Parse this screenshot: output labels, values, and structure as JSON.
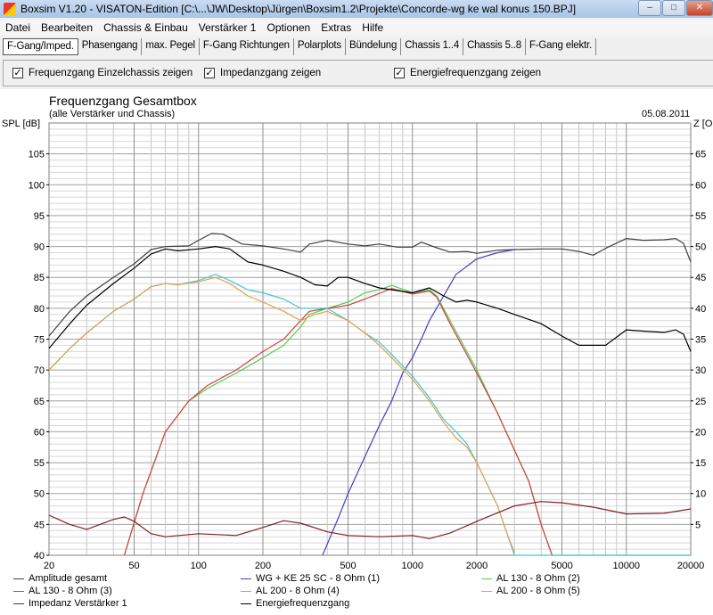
{
  "window": {
    "title": "Boxsim V1.20 - VISATON-Edition [C:\\...\\JW\\Desktop\\Jürgen\\Boxsim1.2\\Projekte\\Concorde-wg ke wal konus 150.BPJ]",
    "min": "–",
    "max": "□",
    "close": "✕"
  },
  "menu": [
    "Datei",
    "Bearbeiten",
    "Chassis & Einbau",
    "Verstärker 1",
    "Optionen",
    "Extras",
    "Hilfe"
  ],
  "tabs": [
    "F-Gang/Imped.",
    "Phasengang",
    "max. Pegel",
    "F-Gang Richtungen",
    "Polarplots",
    "Bündelung",
    "Chassis 1..4",
    "Chassis 5..8",
    "F-Gang elektr."
  ],
  "active_tab": 0,
  "options": [
    {
      "label": "Frequenzgang Einzelchassis zeigen",
      "checked": true
    },
    {
      "label": "Impedanzgang zeigen",
      "checked": true
    },
    {
      "label": "Energiefrequenzgang zeigen",
      "checked": true
    }
  ],
  "chart_data": {
    "type": "line",
    "title": "Frequenzgang Gesamtbox",
    "subtitle": "(alle Verstärker und Chassis)",
    "date": "05.08.2011",
    "ylabel": "SPL [dB]",
    "y2label": "Z [Ohm]",
    "xscale": "log",
    "xlim": [
      20,
      20000
    ],
    "ylim": [
      40,
      110
    ],
    "y2lim": [
      0,
      70
    ],
    "grid": true,
    "legend_position": "bottom",
    "xticks": [
      20,
      50,
      100,
      200,
      500,
      1000,
      2000,
      5000,
      10000,
      20000
    ],
    "yticks": [
      40,
      45,
      50,
      55,
      60,
      65,
      70,
      75,
      80,
      85,
      90,
      95,
      100,
      105
    ],
    "y2ticks": [
      5,
      10,
      15,
      20,
      25,
      30,
      35,
      40,
      45,
      50,
      55,
      60,
      65
    ],
    "series": [
      {
        "name": "Amplitude gesamt",
        "color": "#404040",
        "axis": "left",
        "points": [
          [
            20,
            75.5
          ],
          [
            25,
            79.5
          ],
          [
            30,
            82
          ],
          [
            40,
            85
          ],
          [
            50,
            87.2
          ],
          [
            60,
            89.5
          ],
          [
            70,
            90
          ],
          [
            90,
            90.1
          ],
          [
            100,
            91
          ],
          [
            115,
            92.1
          ],
          [
            130,
            92
          ],
          [
            160,
            90.4
          ],
          [
            200,
            90.1
          ],
          [
            250,
            89.6
          ],
          [
            300,
            89.1
          ],
          [
            330,
            90.4
          ],
          [
            400,
            91
          ],
          [
            500,
            90.4
          ],
          [
            600,
            90.1
          ],
          [
            700,
            90.4
          ],
          [
            850,
            89.9
          ],
          [
            1000,
            89.9
          ],
          [
            1100,
            90.7
          ],
          [
            1300,
            89.8
          ],
          [
            1500,
            89.1
          ],
          [
            1800,
            89.2
          ],
          [
            2000,
            88.9
          ],
          [
            2500,
            89.4
          ],
          [
            3000,
            89.5
          ],
          [
            4000,
            89.6
          ],
          [
            5000,
            89.6
          ],
          [
            6000,
            89.2
          ],
          [
            7000,
            88.6
          ],
          [
            8000,
            89.7
          ],
          [
            10000,
            91.3
          ],
          [
            12000,
            91
          ],
          [
            15000,
            91.1
          ],
          [
            17000,
            91.3
          ],
          [
            18500,
            90.5
          ],
          [
            20000,
            87.5
          ]
        ]
      },
      {
        "name": "WG + KE 25 SC - 8 Ohm (1)",
        "color": "#4040c0",
        "axis": "left",
        "points": [
          [
            380,
            40
          ],
          [
            450,
            46
          ],
          [
            500,
            50
          ],
          [
            600,
            56
          ],
          [
            700,
            61
          ],
          [
            800,
            65
          ],
          [
            900,
            69.5
          ],
          [
            1000,
            72
          ],
          [
            1100,
            75
          ],
          [
            1200,
            78
          ],
          [
            1400,
            82
          ],
          [
            1600,
            85.5
          ],
          [
            2000,
            88
          ],
          [
            2500,
            89
          ],
          [
            3000,
            89.5
          ]
        ]
      },
      {
        "name": "AL 130 - 8 Ohm (2)",
        "color": "#50d050",
        "axis": "left",
        "points": [
          [
            45,
            40
          ],
          [
            55,
            50
          ],
          [
            70,
            60
          ],
          [
            90,
            65
          ],
          [
            110,
            67
          ],
          [
            150,
            69.5
          ],
          [
            200,
            72
          ],
          [
            250,
            74
          ],
          [
            300,
            77
          ],
          [
            330,
            79
          ],
          [
            400,
            80
          ],
          [
            500,
            81
          ],
          [
            600,
            82.5
          ],
          [
            700,
            83
          ],
          [
            800,
            83.7
          ],
          [
            1000,
            82.5
          ],
          [
            1200,
            83
          ],
          [
            1300,
            82
          ],
          [
            1500,
            78
          ],
          [
            2000,
            70
          ],
          [
            2500,
            63
          ],
          [
            3000,
            57
          ],
          [
            3500,
            52
          ],
          [
            4000,
            45
          ],
          [
            4500,
            40
          ],
          [
            20000,
            40
          ]
        ]
      },
      {
        "name": "AL 130 - 8 Ohm (3)",
        "color": "#d04040",
        "axis": "left",
        "points": [
          [
            45,
            40
          ],
          [
            55,
            50
          ],
          [
            70,
            60
          ],
          [
            90,
            65
          ],
          [
            110,
            67.5
          ],
          [
            150,
            70
          ],
          [
            200,
            73
          ],
          [
            250,
            75
          ],
          [
            300,
            78
          ],
          [
            330,
            79.5
          ],
          [
            400,
            80
          ],
          [
            500,
            80.5
          ],
          [
            600,
            81.5
          ],
          [
            800,
            83.2
          ],
          [
            1000,
            82.3
          ],
          [
            1200,
            82.8
          ],
          [
            1300,
            81.8
          ],
          [
            1500,
            77.5
          ],
          [
            2000,
            69.5
          ],
          [
            2500,
            63
          ],
          [
            3000,
            57
          ],
          [
            3500,
            52
          ],
          [
            4000,
            45
          ],
          [
            4500,
            40
          ]
        ]
      },
      {
        "name": "AL 200 - 8 Ohm (4)",
        "color": "#40c8d8",
        "axis": "left",
        "points": [
          [
            20,
            70
          ],
          [
            25,
            73.5
          ],
          [
            30,
            76
          ],
          [
            40,
            79.5
          ],
          [
            50,
            81.5
          ],
          [
            60,
            83.5
          ],
          [
            70,
            84
          ],
          [
            80,
            83.8
          ],
          [
            100,
            84.5
          ],
          [
            120,
            85.5
          ],
          [
            140,
            84.5
          ],
          [
            170,
            83
          ],
          [
            200,
            82.5
          ],
          [
            250,
            81.5
          ],
          [
            300,
            80
          ],
          [
            350,
            80
          ],
          [
            400,
            80
          ],
          [
            500,
            78
          ],
          [
            600,
            76
          ],
          [
            700,
            74.5
          ],
          [
            800,
            72.5
          ],
          [
            1000,
            69
          ],
          [
            1200,
            65.5
          ],
          [
            1400,
            62
          ],
          [
            1600,
            60
          ],
          [
            1800,
            58
          ],
          [
            2000,
            55
          ],
          [
            2500,
            48
          ],
          [
            2800,
            43
          ],
          [
            3000,
            40
          ],
          [
            20000,
            40
          ]
        ]
      },
      {
        "name": "AL 200 - 8 Ohm (5)",
        "color": "#e0a050",
        "axis": "left",
        "points": [
          [
            20,
            70
          ],
          [
            25,
            73.5
          ],
          [
            30,
            76
          ],
          [
            40,
            79.5
          ],
          [
            50,
            81.5
          ],
          [
            60,
            83.5
          ],
          [
            70,
            84
          ],
          [
            80,
            83.8
          ],
          [
            100,
            84.3
          ],
          [
            120,
            85
          ],
          [
            140,
            84
          ],
          [
            170,
            82
          ],
          [
            200,
            81
          ],
          [
            250,
            79.5
          ],
          [
            300,
            78
          ],
          [
            350,
            79
          ],
          [
            400,
            79.5
          ],
          [
            500,
            78
          ],
          [
            600,
            76
          ],
          [
            700,
            74
          ],
          [
            800,
            72
          ],
          [
            1000,
            68.5
          ],
          [
            1200,
            65
          ],
          [
            1400,
            61.5
          ],
          [
            1600,
            59
          ],
          [
            1800,
            57.5
          ],
          [
            2000,
            55
          ],
          [
            2500,
            48
          ],
          [
            2800,
            43
          ],
          [
            3000,
            40.5
          ]
        ]
      },
      {
        "name": "Impedanz Verstärker 1",
        "color": "#802020",
        "axis": "right",
        "points": [
          [
            20,
            6.5
          ],
          [
            25,
            5
          ],
          [
            30,
            4.2
          ],
          [
            40,
            5.8
          ],
          [
            45,
            6.2
          ],
          [
            50,
            5.5
          ],
          [
            60,
            3.5
          ],
          [
            70,
            3
          ],
          [
            100,
            3.5
          ],
          [
            150,
            3.2
          ],
          [
            200,
            4.5
          ],
          [
            250,
            5.6
          ],
          [
            300,
            5.2
          ],
          [
            400,
            3.8
          ],
          [
            500,
            3.2
          ],
          [
            700,
            3
          ],
          [
            1000,
            3.2
          ],
          [
            1200,
            2.7
          ],
          [
            1500,
            3.6
          ],
          [
            2000,
            5.5
          ],
          [
            3000,
            8
          ],
          [
            4000,
            8.7
          ],
          [
            5000,
            8.5
          ],
          [
            7000,
            7.8
          ],
          [
            10000,
            6.7
          ],
          [
            15000,
            6.8
          ],
          [
            20000,
            7.5
          ]
        ]
      },
      {
        "name": "Energiefrequenzgang",
        "color": "#000000",
        "axis": "left",
        "points": [
          [
            20,
            73.5
          ],
          [
            25,
            77.5
          ],
          [
            30,
            80.5
          ],
          [
            40,
            84
          ],
          [
            50,
            86.5
          ],
          [
            60,
            88.8
          ],
          [
            70,
            89.6
          ],
          [
            80,
            89.3
          ],
          [
            100,
            89.6
          ],
          [
            120,
            90
          ],
          [
            140,
            89.6
          ],
          [
            170,
            87.5
          ],
          [
            200,
            87
          ],
          [
            250,
            86
          ],
          [
            300,
            85
          ],
          [
            350,
            83.8
          ],
          [
            400,
            83.6
          ],
          [
            450,
            85
          ],
          [
            500,
            85
          ],
          [
            600,
            84
          ],
          [
            700,
            83.3
          ],
          [
            800,
            83
          ],
          [
            1000,
            82.5
          ],
          [
            1200,
            83.3
          ],
          [
            1400,
            82
          ],
          [
            1600,
            81
          ],
          [
            1800,
            81.3
          ],
          [
            2000,
            81
          ],
          [
            2500,
            80
          ],
          [
            3000,
            79
          ],
          [
            4000,
            77.5
          ],
          [
            5000,
            75.5
          ],
          [
            6000,
            74
          ],
          [
            8000,
            74
          ],
          [
            10000,
            76.5
          ],
          [
            12000,
            76.3
          ],
          [
            15000,
            76.1
          ],
          [
            17000,
            76.5
          ],
          [
            18500,
            75.8
          ],
          [
            20000,
            73
          ]
        ]
      }
    ]
  }
}
